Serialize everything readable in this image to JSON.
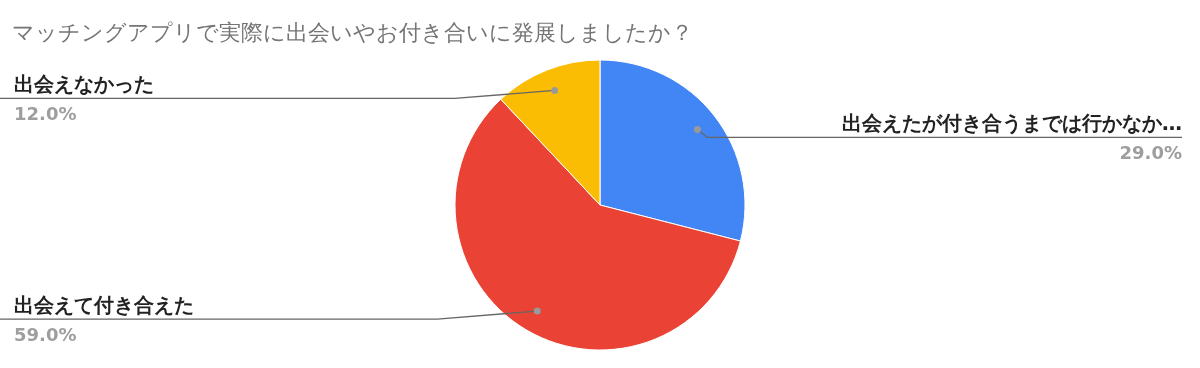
{
  "chart_data": {
    "type": "pie",
    "title": "マッチングアプリで実際に出会いやお付き合いに発展しましたか？",
    "categories": [
      "出会えたが付き合うまでは行かなか…",
      "出会えて付き合えた",
      "出会えなかった"
    ],
    "values": [
      29,
      59,
      12
    ],
    "value_labels": [
      "29.0%",
      "59.0%",
      "12.0%"
    ],
    "colors": [
      "#4285f4",
      "#ea4335",
      "#fbbc04"
    ]
  }
}
